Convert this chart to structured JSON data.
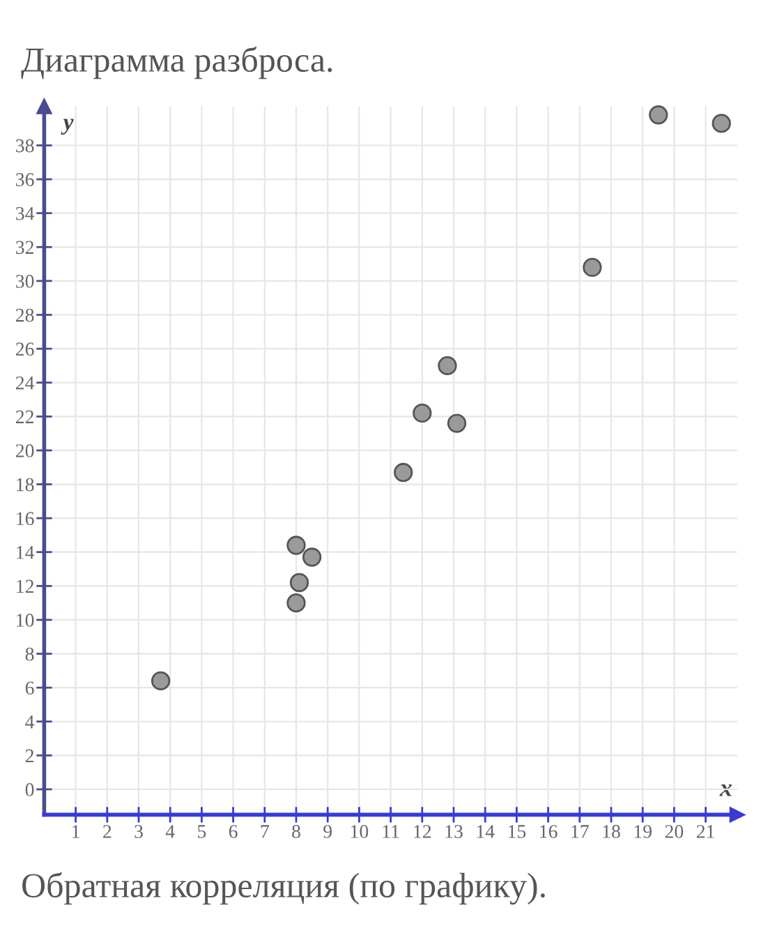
{
  "chart_data": {
    "type": "scatter",
    "title": "Диаграмма разброса.",
    "xlabel": "x",
    "ylabel": "y",
    "annotations": [
      "Обратная корреляция (по графику)."
    ],
    "x": [
      3.7,
      8.0,
      8.5,
      8.1,
      8.0,
      11.4,
      12.0,
      13.1,
      12.8,
      17.4,
      19.5,
      21.5
    ],
    "values": [
      6.4,
      14.4,
      13.7,
      12.2,
      11.0,
      18.7,
      22.2,
      21.6,
      25.0,
      30.8,
      39.8,
      39.3
    ],
    "color": "#9a9a9a",
    "marker": "circle",
    "grid": true,
    "xlim": [
      0,
      22
    ],
    "ylim": [
      -1.5,
      40.3
    ],
    "xticks": [
      1,
      2,
      3,
      4,
      5,
      6,
      7,
      8,
      9,
      10,
      11,
      12,
      13,
      14,
      15,
      16,
      17,
      18,
      19,
      20,
      21
    ],
    "yticks": [
      0,
      2,
      4,
      6,
      8,
      10,
      12,
      14,
      16,
      18,
      20,
      22,
      24,
      26,
      28,
      30,
      32,
      34,
      36,
      38
    ]
  }
}
